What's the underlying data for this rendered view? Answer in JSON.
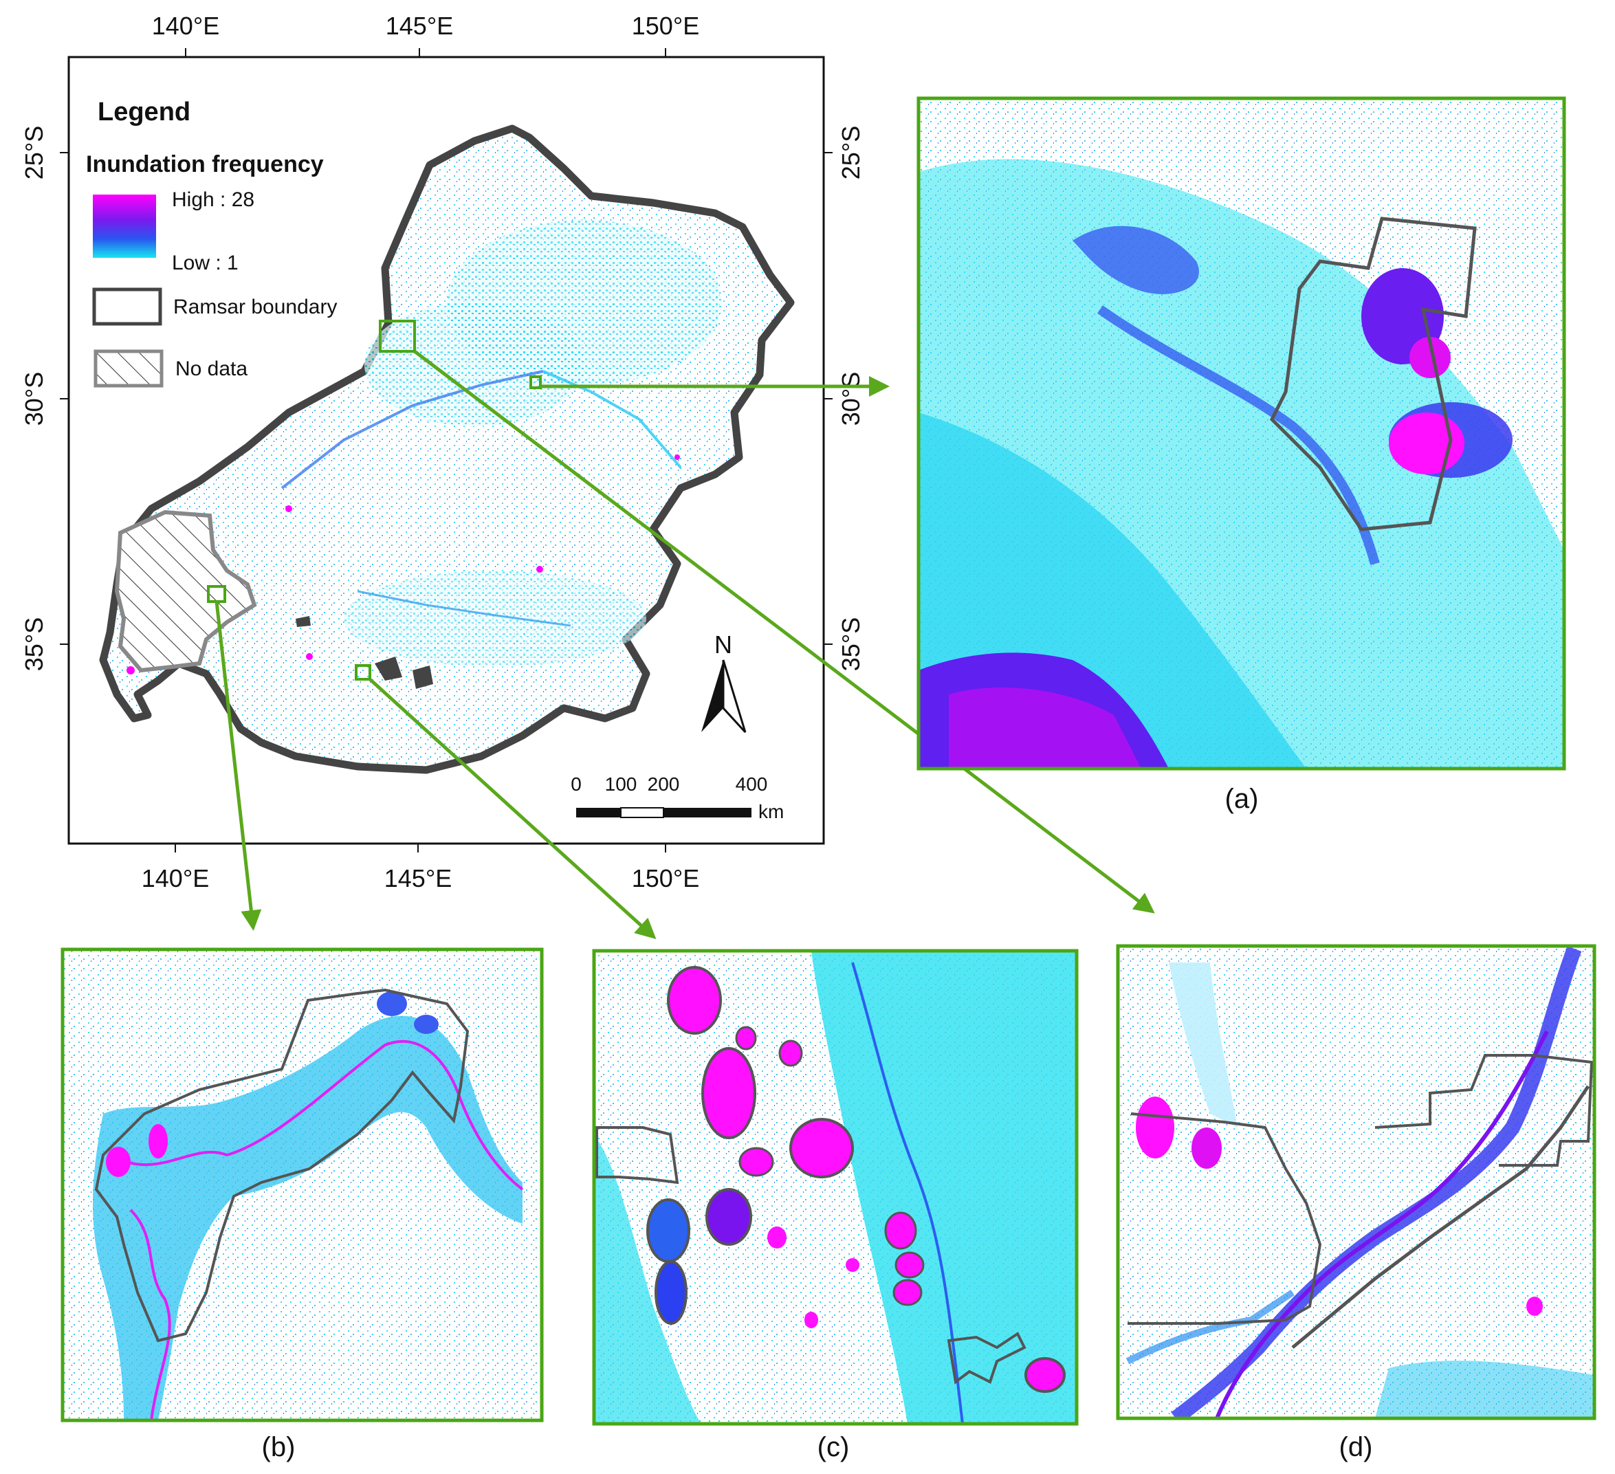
{
  "main_map": {
    "axes": {
      "top_ticks": [
        "140°E",
        "145°E",
        "150°E"
      ],
      "bottom_ticks": [
        "140°E",
        "145°E",
        "150°E"
      ],
      "left_ticks": [
        "25°S",
        "30°S",
        "35°S"
      ],
      "right_ticks": [
        "25°S",
        "30°S",
        "35°S"
      ]
    },
    "legend": {
      "title": "Legend",
      "subtitle": "Inundation frequency",
      "high_label": "High : 28",
      "low_label": "Low : 1",
      "ramsar_label": "Ramsar boundary",
      "nodata_label": "No data"
    },
    "north_arrow": "N",
    "scale_bar": {
      "labels": [
        "0",
        "100",
        "200",
        "400"
      ],
      "unit": "km"
    }
  },
  "panels": {
    "a": "(a)",
    "b": "(b)",
    "c": "(c)",
    "d": "(d)"
  },
  "colors": {
    "frame_green": "#4aa614",
    "arrow_green": "#5aa81c",
    "low": "#18e5f0",
    "mid": "#3355ee",
    "high": "#ff00ff",
    "boundary": "#444444",
    "nodata": "#888888"
  }
}
